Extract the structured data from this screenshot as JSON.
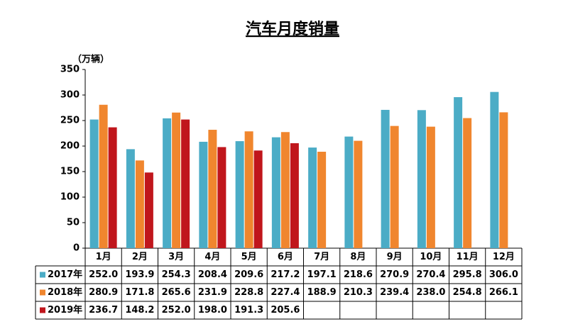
{
  "chart_data": {
    "type": "bar",
    "title": "汽车月度销量",
    "y_label": "（万辆）",
    "categories": [
      "1月",
      "2月",
      "3月",
      "4月",
      "5月",
      "6月",
      "7月",
      "8月",
      "9月",
      "10月",
      "11月",
      "12月"
    ],
    "series": [
      {
        "name": "2017年",
        "color": "#4bacc6",
        "values": [
          252.0,
          193.9,
          254.3,
          208.4,
          209.6,
          217.2,
          197.1,
          218.6,
          270.9,
          270.4,
          295.8,
          306.0
        ],
        "value_labels": [
          "252.0",
          "193.9",
          "254.3",
          "208.4",
          "209.6",
          "217.2",
          "197.1",
          "218.6",
          "270.9",
          "270.4",
          "295.8",
          "306.0"
        ]
      },
      {
        "name": "2018年",
        "color": "#f0862e",
        "values": [
          280.9,
          171.8,
          265.6,
          231.9,
          228.8,
          227.4,
          188.9,
          210.3,
          239.4,
          238.0,
          254.8,
          266.1
        ],
        "value_labels": [
          "280.9",
          "171.8",
          "265.6",
          "231.9",
          "228.8",
          "227.4",
          "188.9",
          "210.3",
          "239.4",
          "238.0",
          "254.8",
          "266.1"
        ]
      },
      {
        "name": "2019年",
        "color": "#c0161c",
        "values": [
          236.7,
          148.2,
          252.0,
          198.0,
          191.3,
          205.6,
          null,
          null,
          null,
          null,
          null,
          null
        ],
        "value_labels": [
          "236.7",
          "148.2",
          "252.0",
          "198.0",
          "191.3",
          "205.6",
          null,
          null,
          null,
          null,
          null,
          null
        ]
      }
    ],
    "ylim": [
      0,
      350
    ],
    "yticks": [
      0,
      50,
      100,
      150,
      200,
      250,
      300,
      350
    ],
    "grid": false
  }
}
